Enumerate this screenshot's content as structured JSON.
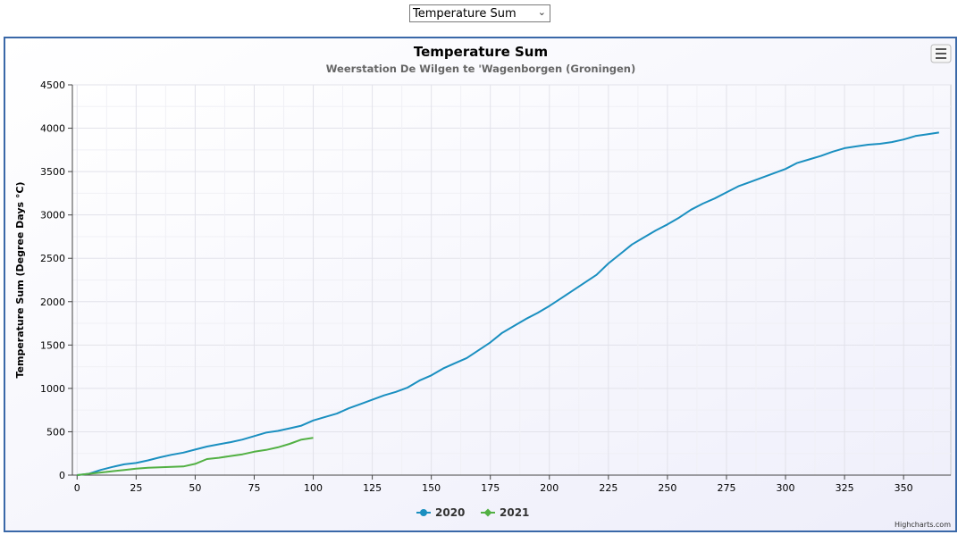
{
  "selector": {
    "selected": "Temperature Sum"
  },
  "menu": {
    "icon": "hamburger-menu-icon"
  },
  "credits": "Highcharts.com",
  "colors": {
    "series_2020": "#1a8fc0",
    "series_2021": "#52b043",
    "frame_border": "#3a68a8"
  },
  "chart_data": {
    "type": "line",
    "title": "Temperature Sum",
    "subtitle": "Weerstation De Wilgen te 'Wagenborgen (Groningen)",
    "xlabel": "",
    "ylabel": "Temperature Sum (Degree Days °C)",
    "xlim": [
      -2,
      370
    ],
    "ylim": [
      0,
      4500
    ],
    "xticks": [
      0,
      25,
      50,
      75,
      100,
      125,
      150,
      175,
      200,
      225,
      250,
      275,
      300,
      325,
      350
    ],
    "yticks": [
      0,
      500,
      1000,
      1500,
      2000,
      2500,
      3000,
      3500,
      4000,
      4500
    ],
    "grid": true,
    "legend_position": "bottom-center",
    "series": [
      {
        "name": "2020",
        "color": "#1a8fc0",
        "points": [
          [
            0,
            0
          ],
          [
            5,
            15
          ],
          [
            10,
            60
          ],
          [
            15,
            95
          ],
          [
            20,
            125
          ],
          [
            25,
            140
          ],
          [
            30,
            170
          ],
          [
            35,
            205
          ],
          [
            40,
            235
          ],
          [
            45,
            260
          ],
          [
            50,
            295
          ],
          [
            55,
            330
          ],
          [
            60,
            355
          ],
          [
            65,
            380
          ],
          [
            70,
            410
          ],
          [
            75,
            450
          ],
          [
            80,
            490
          ],
          [
            85,
            510
          ],
          [
            90,
            540
          ],
          [
            95,
            570
          ],
          [
            100,
            630
          ],
          [
            105,
            670
          ],
          [
            110,
            710
          ],
          [
            115,
            770
          ],
          [
            120,
            820
          ],
          [
            125,
            870
          ],
          [
            130,
            920
          ],
          [
            135,
            960
          ],
          [
            140,
            1010
          ],
          [
            145,
            1090
          ],
          [
            150,
            1150
          ],
          [
            155,
            1230
          ],
          [
            160,
            1290
          ],
          [
            165,
            1350
          ],
          [
            170,
            1440
          ],
          [
            175,
            1530
          ],
          [
            180,
            1640
          ],
          [
            185,
            1720
          ],
          [
            190,
            1800
          ],
          [
            195,
            1870
          ],
          [
            200,
            1950
          ],
          [
            205,
            2040
          ],
          [
            210,
            2130
          ],
          [
            215,
            2220
          ],
          [
            220,
            2310
          ],
          [
            225,
            2440
          ],
          [
            230,
            2550
          ],
          [
            235,
            2660
          ],
          [
            240,
            2740
          ],
          [
            245,
            2820
          ],
          [
            250,
            2890
          ],
          [
            255,
            2970
          ],
          [
            260,
            3060
          ],
          [
            265,
            3130
          ],
          [
            270,
            3190
          ],
          [
            275,
            3260
          ],
          [
            280,
            3330
          ],
          [
            285,
            3380
          ],
          [
            290,
            3430
          ],
          [
            295,
            3480
          ],
          [
            300,
            3530
          ],
          [
            305,
            3600
          ],
          [
            310,
            3640
          ],
          [
            315,
            3680
          ],
          [
            320,
            3730
          ],
          [
            325,
            3770
          ],
          [
            330,
            3790
          ],
          [
            335,
            3810
          ],
          [
            340,
            3820
          ],
          [
            345,
            3840
          ],
          [
            350,
            3870
          ],
          [
            355,
            3910
          ],
          [
            360,
            3930
          ],
          [
            365,
            3950
          ]
        ]
      },
      {
        "name": "2021",
        "color": "#52b043",
        "points": [
          [
            0,
            0
          ],
          [
            5,
            15
          ],
          [
            10,
            30
          ],
          [
            15,
            45
          ],
          [
            20,
            60
          ],
          [
            25,
            75
          ],
          [
            30,
            85
          ],
          [
            35,
            90
          ],
          [
            40,
            95
          ],
          [
            45,
            100
          ],
          [
            50,
            130
          ],
          [
            55,
            185
          ],
          [
            60,
            200
          ],
          [
            65,
            220
          ],
          [
            70,
            240
          ],
          [
            75,
            270
          ],
          [
            80,
            290
          ],
          [
            85,
            320
          ],
          [
            90,
            360
          ],
          [
            95,
            410
          ],
          [
            100,
            430
          ]
        ]
      }
    ]
  }
}
